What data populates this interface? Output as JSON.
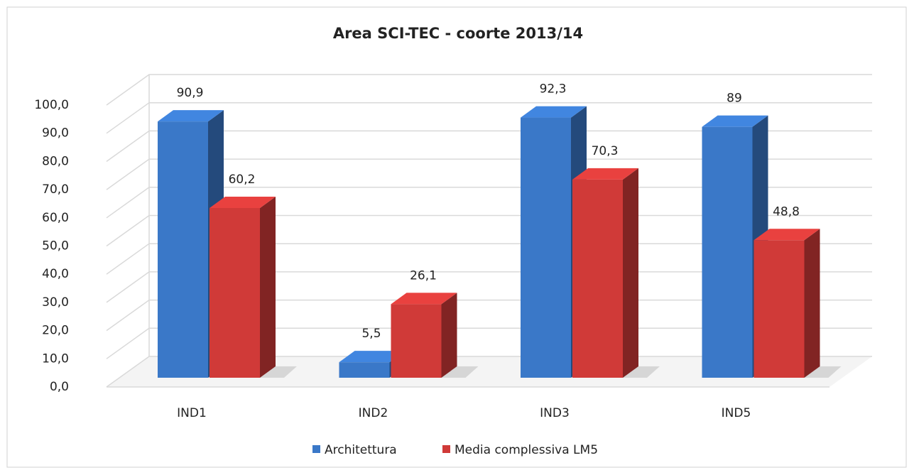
{
  "chart_data": {
    "type": "bar3d",
    "title": "Area SCI-TEC - coorte 2013/14",
    "categories": [
      "IND1",
      "IND2",
      "IND3",
      "IND5"
    ],
    "series": [
      {
        "name": "Architettura",
        "color": "#3a78c8",
        "values": [
          90.9,
          5.5,
          92.3,
          89
        ],
        "value_labels": [
          "90,9",
          "5,5",
          "92,3",
          "89"
        ]
      },
      {
        "name": "Media complessiva LM5",
        "color": "#d03a38",
        "values": [
          60.2,
          26.1,
          70.3,
          48.8
        ],
        "value_labels": [
          "60,2",
          "26,1",
          "70,3",
          "48,8"
        ]
      }
    ],
    "ylim": [
      0,
      100
    ],
    "yticks": [
      {
        "value": 0,
        "label": "0,0"
      },
      {
        "value": 10,
        "label": "10,0"
      },
      {
        "value": 20,
        "label": "20,0"
      },
      {
        "value": 30,
        "label": "30,0"
      },
      {
        "value": 40,
        "label": "40,0"
      },
      {
        "value": 50,
        "label": "50,0"
      },
      {
        "value": 60,
        "label": "60,0"
      },
      {
        "value": 70,
        "label": "70,0"
      },
      {
        "value": 80,
        "label": "80,0"
      },
      {
        "value": 90,
        "label": "90,0"
      },
      {
        "value": 100,
        "label": "100,0"
      }
    ],
    "grid": true,
    "legend": "bottom"
  }
}
